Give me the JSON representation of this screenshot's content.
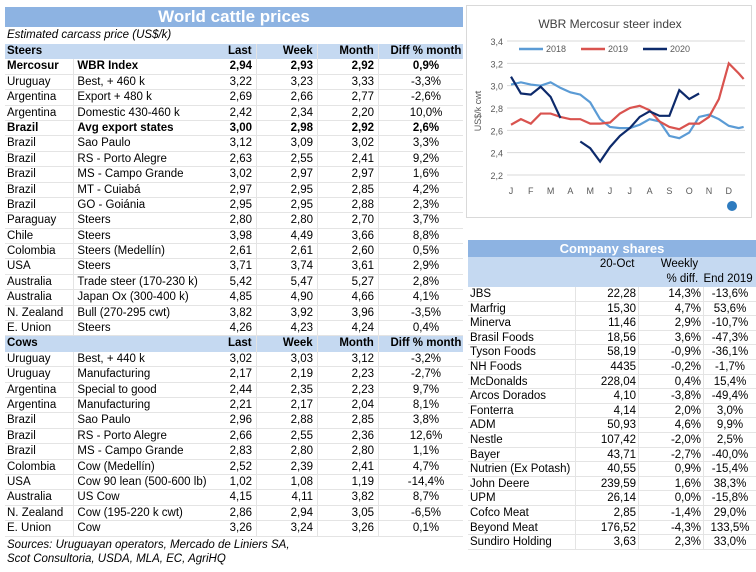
{
  "left": {
    "title": "World cattle prices",
    "subtitle": "Estimated carcass price (US$/k)",
    "steers_header": [
      "Steers",
      "",
      "Last",
      "Week",
      "Month",
      "Diff % month"
    ],
    "steers": [
      [
        "Mercosur",
        "WBR Index",
        "2,94",
        "2,93",
        "2,92",
        "0,9%",
        true
      ],
      [
        "Uruguay",
        "Best, + 460 k",
        "3,22",
        "3,23",
        "3,33",
        "-3,3%",
        false
      ],
      [
        "Argentina",
        "Export + 480 k",
        "2,69",
        "2,66",
        "2,77",
        "-2,6%",
        false
      ],
      [
        "Argentina",
        "Domestic 430-460 k",
        "2,42",
        "2,34",
        "2,20",
        "10,0%",
        false
      ],
      [
        "Brazil",
        "Avg export states",
        "3,00",
        "2,98",
        "2,92",
        "2,6%",
        true
      ],
      [
        "Brazil",
        "Sao Paulo",
        "3,12",
        "3,09",
        "3,02",
        "3,3%",
        false
      ],
      [
        "Brazil",
        "RS - Porto Alegre",
        "2,63",
        "2,55",
        "2,41",
        "9,2%",
        false
      ],
      [
        "Brazil",
        "MS - Campo Grande",
        "3,02",
        "2,97",
        "2,97",
        "1,6%",
        false
      ],
      [
        "Brazil",
        "MT - Cuiabá",
        "2,97",
        "2,95",
        "2,85",
        "4,2%",
        false
      ],
      [
        "Brazil",
        "GO - Goiánia",
        "2,95",
        "2,95",
        "2,88",
        "2,3%",
        false
      ],
      [
        "Paraguay",
        "Steers",
        "2,80",
        "2,80",
        "2,70",
        "3,7%",
        false
      ],
      [
        "Chile",
        "Steers",
        "3,98",
        "4,49",
        "3,66",
        "8,8%",
        false
      ],
      [
        "Colombia",
        "Steers (Medellín)",
        "2,61",
        "2,61",
        "2,60",
        "0,5%",
        false
      ],
      [
        "USA",
        "Steers",
        "3,71",
        "3,74",
        "3,61",
        "2,9%",
        false
      ],
      [
        "Australia",
        "Trade steer (170-230 k)",
        "5,42",
        "5,47",
        "5,27",
        "2,8%",
        false
      ],
      [
        "Australia",
        "Japan Ox (300-400 k)",
        "4,85",
        "4,90",
        "4,66",
        "4,1%",
        false
      ],
      [
        "N. Zealand",
        "Bull (270-295 cwt)",
        "3,82",
        "3,92",
        "3,96",
        "-3,5%",
        false
      ],
      [
        "E. Union",
        "Steers",
        "4,26",
        "4,23",
        "4,24",
        "0,4%",
        false
      ]
    ],
    "cows_header": [
      "Cows",
      "",
      "Last",
      "Week",
      "Month",
      "Diff % month"
    ],
    "cows": [
      [
        "Uruguay",
        "Best, + 440 k",
        "3,02",
        "3,03",
        "3,12",
        "-3,2%"
      ],
      [
        "Uruguay",
        "Manufacturing",
        "2,17",
        "2,19",
        "2,23",
        "-2,7%"
      ],
      [
        "Argentina",
        "Special to good",
        "2,44",
        "2,35",
        "2,23",
        "9,7%"
      ],
      [
        "Argentina",
        "Manufacturing",
        "2,21",
        "2,17",
        "2,04",
        "8,1%"
      ],
      [
        "Brazil",
        "Sao Paulo",
        "2,96",
        "2,88",
        "2,85",
        "3,8%"
      ],
      [
        "Brazil",
        "RS - Porto Alegre",
        "2,66",
        "2,55",
        "2,36",
        "12,6%"
      ],
      [
        "Brazil",
        "MS - Campo Grande",
        "2,83",
        "2,80",
        "2,80",
        "1,1%"
      ],
      [
        "Colombia",
        "Cow (Medellín)",
        "2,52",
        "2,39",
        "2,41",
        "4,7%"
      ],
      [
        "USA",
        "Cow 90 lean (500-600 lb)",
        "1,02",
        "1,08",
        "1,19",
        "-14,4%"
      ],
      [
        "Australia",
        "US Cow",
        "4,15",
        "4,11",
        "3,82",
        "8,7%"
      ],
      [
        "N. Zealand",
        "Cow (195-220 k cwt)",
        "2,86",
        "2,94",
        "3,05",
        "-6,5%"
      ],
      [
        "E. Union",
        "Cow",
        "3,26",
        "3,24",
        "3,26",
        "0,1%"
      ]
    ],
    "sources": [
      "Sources: Uruguayan operators, Mercado de Liniers SA,",
      "Scot Consultoria, USDA, MLA, EC, AgriHQ"
    ]
  },
  "chart_data": {
    "type": "line",
    "title": "WBR Mercosur steer index",
    "ylabel": "US$/k cwt",
    "ylim": [
      2.2,
      3.4
    ],
    "yticks": [
      "2,2",
      "2,4",
      "2,6",
      "2,8",
      "3,0",
      "3,2",
      "3,4"
    ],
    "categories": [
      "J",
      "F",
      "M",
      "A",
      "M",
      "J",
      "J",
      "A",
      "S",
      "O",
      "N",
      "D"
    ],
    "grid": true,
    "legend": "top",
    "x": [
      0,
      0.5,
      1,
      1.5,
      2,
      2.5,
      3,
      3.5,
      4,
      4.5,
      5,
      5.5,
      6,
      6.5,
      7,
      7.5,
      8,
      8.5,
      9,
      9.5,
      10,
      10.5,
      11,
      11.5,
      11.75
    ],
    "series": [
      {
        "name": "2018",
        "color": "#5b9bd5",
        "values": [
          3.01,
          3.03,
          3.01,
          3.0,
          3.03,
          2.98,
          2.94,
          2.92,
          2.85,
          2.7,
          2.63,
          2.62,
          2.62,
          2.65,
          2.7,
          2.68,
          2.55,
          2.53,
          2.58,
          2.72,
          2.74,
          2.7,
          2.64,
          2.62,
          2.63
        ]
      },
      {
        "name": "2019",
        "color": "#d9534f",
        "values": [
          2.65,
          2.7,
          2.66,
          2.75,
          2.75,
          2.72,
          2.7,
          2.7,
          2.66,
          2.66,
          2.67,
          2.75,
          2.8,
          2.82,
          2.78,
          2.68,
          2.63,
          2.61,
          2.66,
          2.66,
          2.72,
          2.88,
          3.2,
          3.11,
          3.06
        ]
      },
      {
        "name": "2020",
        "color": "#0d2a6b",
        "values": [
          3.08,
          2.93,
          2.92,
          2.99,
          2.9,
          2.71,
          null,
          2.5,
          2.44,
          2.32,
          2.45,
          2.55,
          2.62,
          2.72,
          2.77,
          2.73,
          2.73,
          2.96,
          2.88,
          2.93,
          null,
          null,
          null,
          null,
          null
        ],
        "final": [
          9.75,
          2.94
        ]
      }
    ]
  },
  "right": {
    "title": "Company shares",
    "header": [
      "",
      "20-Oct",
      "Weekly\n% diff.",
      "End 2019"
    ],
    "header_weekly_1": "Weekly",
    "header_weekly_2": "% diff.",
    "rows": [
      [
        "JBS",
        "22,28",
        "14,3%",
        "-13,6%"
      ],
      [
        "Marfrig",
        "15,30",
        "4,7%",
        "53,6%"
      ],
      [
        "Minerva",
        "11,46",
        "2,9%",
        "-10,7%"
      ],
      [
        "Brasil Foods",
        "18,56",
        "3,6%",
        "-47,3%"
      ],
      [
        "Tyson Foods",
        "58,19",
        "-0,9%",
        "-36,1%"
      ],
      [
        "NH Foods",
        "4435",
        "-0,2%",
        "-1,7%"
      ],
      [
        "McDonalds",
        "228,04",
        "0,4%",
        "15,4%"
      ],
      [
        "Arcos Dorados",
        "4,10",
        "-3,8%",
        "-49,4%"
      ],
      [
        "Fonterra",
        "4,14",
        "2,0%",
        "3,0%"
      ],
      [
        "ADM",
        "50,93",
        "4,6%",
        "9,9%"
      ],
      [
        "Nestle",
        "107,42",
        "-2,0%",
        "2,5%"
      ],
      [
        "Bayer",
        "43,71",
        "-2,7%",
        "-40,0%"
      ],
      [
        "Nutrien (Ex Potash)",
        "40,55",
        "0,9%",
        "-15,4%"
      ],
      [
        "John Deere",
        "239,59",
        "1,6%",
        "38,3%"
      ],
      [
        "UPM",
        "26,14",
        "0,0%",
        "-15,8%"
      ],
      [
        "Cofco Meat",
        "2,85",
        "-1,4%",
        "29,0%"
      ],
      [
        "Beyond Meat",
        "176,52",
        "-4,3%",
        "133,5%"
      ],
      [
        "Sundiro Holding",
        "3,63",
        "2,3%",
        "33,0%"
      ]
    ]
  }
}
